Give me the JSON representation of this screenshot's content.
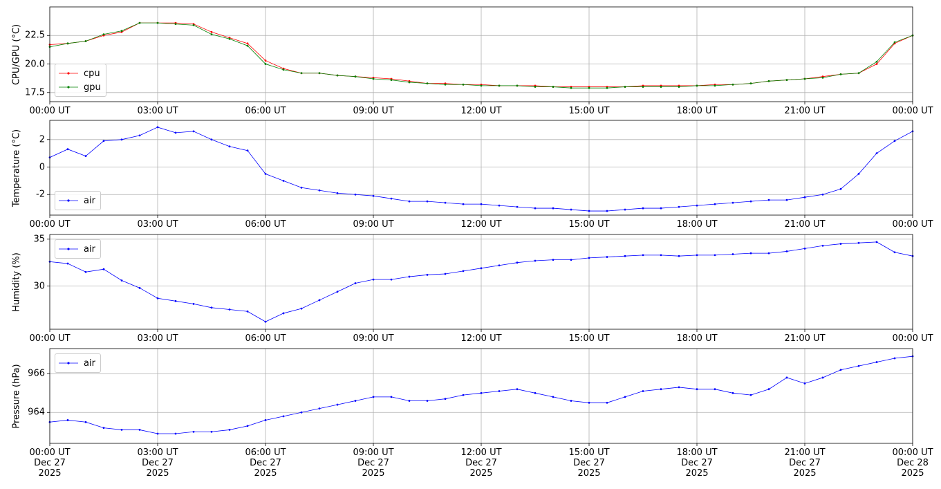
{
  "chart_data": [
    {
      "type": "line",
      "ylabel": "CPU/GPU (°C)",
      "grid": true,
      "legend": "lower left",
      "x": [
        "2025-12-27 00:00",
        "2025-12-27 00:30",
        "2025-12-27 01:00",
        "2025-12-27 01:30",
        "2025-12-27 02:00",
        "2025-12-27 02:30",
        "2025-12-27 03:00",
        "2025-12-27 03:30",
        "2025-12-27 04:00",
        "2025-12-27 04:30",
        "2025-12-27 05:00",
        "2025-12-27 05:30",
        "2025-12-27 06:00",
        "2025-12-27 06:30",
        "2025-12-27 07:00",
        "2025-12-27 07:30",
        "2025-12-27 08:00",
        "2025-12-27 08:30",
        "2025-12-27 09:00",
        "2025-12-27 09:30",
        "2025-12-27 10:00",
        "2025-12-27 10:30",
        "2025-12-27 11:00",
        "2025-12-27 11:30",
        "2025-12-27 12:00",
        "2025-12-27 12:30",
        "2025-12-27 13:00",
        "2025-12-27 13:30",
        "2025-12-27 14:00",
        "2025-12-27 14:30",
        "2025-12-27 15:00",
        "2025-12-27 15:30",
        "2025-12-27 16:00",
        "2025-12-27 16:30",
        "2025-12-27 17:00",
        "2025-12-27 17:30",
        "2025-12-27 18:00",
        "2025-12-27 18:30",
        "2025-12-27 19:00",
        "2025-12-27 19:30",
        "2025-12-27 20:00",
        "2025-12-27 20:30",
        "2025-12-27 21:00",
        "2025-12-27 21:30",
        "2025-12-27 22:00",
        "2025-12-27 22:30",
        "2025-12-27 23:00",
        "2025-12-27 23:30",
        "2025-12-28 00:00"
      ],
      "series": [
        {
          "name": "cpu",
          "color": "red",
          "values": [
            21.7,
            21.8,
            22.0,
            22.5,
            22.8,
            23.6,
            23.6,
            23.6,
            23.5,
            22.8,
            22.3,
            21.8,
            20.3,
            19.6,
            19.2,
            19.2,
            19.0,
            18.9,
            18.8,
            18.7,
            18.5,
            18.3,
            18.3,
            18.2,
            18.2,
            18.1,
            18.1,
            18.1,
            18.0,
            18.0,
            18.0,
            18.0,
            18.0,
            18.1,
            18.1,
            18.1,
            18.1,
            18.2,
            18.2,
            18.3,
            18.5,
            18.6,
            18.7,
            18.9,
            19.1,
            19.2,
            20.0,
            21.8,
            22.5
          ]
        },
        {
          "name": "gpu",
          "color": "green",
          "values": [
            21.5,
            21.8,
            22.0,
            22.6,
            22.9,
            23.6,
            23.6,
            23.5,
            23.4,
            22.6,
            22.2,
            21.6,
            20.0,
            19.5,
            19.2,
            19.2,
            19.0,
            18.9,
            18.7,
            18.6,
            18.4,
            18.3,
            18.2,
            18.2,
            18.1,
            18.1,
            18.1,
            18.0,
            18.0,
            17.9,
            17.9,
            17.9,
            18.0,
            18.0,
            18.0,
            18.0,
            18.1,
            18.1,
            18.2,
            18.3,
            18.5,
            18.6,
            18.7,
            18.8,
            19.1,
            19.2,
            20.2,
            21.9,
            22.5
          ]
        }
      ],
      "xlim": [
        "2025-12-27 00:00",
        "2025-12-28 00:00"
      ],
      "xticks": [
        {
          "value": "2025-12-27 00:00",
          "label": "00:00 UT"
        },
        {
          "value": "2025-12-27 03:00",
          "label": "03:00 UT"
        },
        {
          "value": "2025-12-27 06:00",
          "label": "06:00 UT"
        },
        {
          "value": "2025-12-27 09:00",
          "label": "09:00 UT"
        },
        {
          "value": "2025-12-27 12:00",
          "label": "12:00 UT"
        },
        {
          "value": "2025-12-27 15:00",
          "label": "15:00 UT"
        },
        {
          "value": "2025-12-27 18:00",
          "label": "18:00 UT"
        },
        {
          "value": "2025-12-27 21:00",
          "label": "21:00 UT"
        },
        {
          "value": "2025-12-28 00:00",
          "label": "00:00 UT"
        }
      ],
      "ylim": [
        16.7,
        25.0
      ],
      "yticks": [
        17.5,
        {
          "value": 20,
          "label": "20.0"
        },
        22.5
      ]
    },
    {
      "type": "line",
      "ylabel": "Temperature (°C)",
      "grid": true,
      "legend": "lower left",
      "x": [
        "2025-12-27 00:00",
        "2025-12-27 00:30",
        "2025-12-27 01:00",
        "2025-12-27 01:30",
        "2025-12-27 02:00",
        "2025-12-27 02:30",
        "2025-12-27 03:00",
        "2025-12-27 03:30",
        "2025-12-27 04:00",
        "2025-12-27 04:30",
        "2025-12-27 05:00",
        "2025-12-27 05:30",
        "2025-12-27 06:00",
        "2025-12-27 06:30",
        "2025-12-27 07:00",
        "2025-12-27 07:30",
        "2025-12-27 08:00",
        "2025-12-27 08:30",
        "2025-12-27 09:00",
        "2025-12-27 09:30",
        "2025-12-27 10:00",
        "2025-12-27 10:30",
        "2025-12-27 11:00",
        "2025-12-27 11:30",
        "2025-12-27 12:00",
        "2025-12-27 12:30",
        "2025-12-27 13:00",
        "2025-12-27 13:30",
        "2025-12-27 14:00",
        "2025-12-27 14:30",
        "2025-12-27 15:00",
        "2025-12-27 15:30",
        "2025-12-27 16:00",
        "2025-12-27 16:30",
        "2025-12-27 17:00",
        "2025-12-27 17:30",
        "2025-12-27 18:00",
        "2025-12-27 18:30",
        "2025-12-27 19:00",
        "2025-12-27 19:30",
        "2025-12-27 20:00",
        "2025-12-27 20:30",
        "2025-12-27 21:00",
        "2025-12-27 21:30",
        "2025-12-27 22:00",
        "2025-12-27 22:30",
        "2025-12-27 23:00",
        "2025-12-27 23:30",
        "2025-12-28 00:00"
      ],
      "series": [
        {
          "name": "air",
          "color": "blue",
          "values": [
            0.7,
            1.3,
            0.8,
            1.9,
            2.0,
            2.3,
            2.9,
            2.5,
            2.6,
            2.0,
            1.5,
            1.2,
            -0.5,
            -1.0,
            -1.5,
            -1.7,
            -1.9,
            -2.0,
            -2.1,
            -2.3,
            -2.5,
            -2.5,
            -2.6,
            -2.7,
            -2.7,
            -2.8,
            -2.9,
            -3.0,
            -3.0,
            -3.1,
            -3.2,
            -3.2,
            -3.1,
            -3.0,
            -3.0,
            -2.9,
            -2.8,
            -2.7,
            -2.6,
            -2.5,
            -2.4,
            -2.4,
            -2.2,
            -2.0,
            -1.6,
            -0.5,
            1.0,
            1.9,
            2.6
          ]
        }
      ],
      "xlim": [
        "2025-12-27 00:00",
        "2025-12-28 00:00"
      ],
      "xticks": [
        {
          "value": "2025-12-27 00:00",
          "label": "00:00 UT"
        },
        {
          "value": "2025-12-27 03:00",
          "label": "03:00 UT"
        },
        {
          "value": "2025-12-27 06:00",
          "label": "06:00 UT"
        },
        {
          "value": "2025-12-27 09:00",
          "label": "09:00 UT"
        },
        {
          "value": "2025-12-27 12:00",
          "label": "12:00 UT"
        },
        {
          "value": "2025-12-27 15:00",
          "label": "15:00 UT"
        },
        {
          "value": "2025-12-27 18:00",
          "label": "18:00 UT"
        },
        {
          "value": "2025-12-27 21:00",
          "label": "21:00 UT"
        },
        {
          "value": "2025-12-28 00:00",
          "label": "00:00 UT"
        }
      ],
      "ylim": [
        -3.5,
        3.4
      ],
      "yticks": [
        -2,
        0,
        2
      ]
    },
    {
      "type": "line",
      "ylabel": "Humidity (%)",
      "grid": true,
      "legend": "upper left",
      "x": [
        "2025-12-27 00:00",
        "2025-12-27 00:30",
        "2025-12-27 01:00",
        "2025-12-27 01:30",
        "2025-12-27 02:00",
        "2025-12-27 02:30",
        "2025-12-27 03:00",
        "2025-12-27 03:30",
        "2025-12-27 04:00",
        "2025-12-27 04:30",
        "2025-12-27 05:00",
        "2025-12-27 05:30",
        "2025-12-27 06:00",
        "2025-12-27 06:30",
        "2025-12-27 07:00",
        "2025-12-27 07:30",
        "2025-12-27 08:00",
        "2025-12-27 08:30",
        "2025-12-27 09:00",
        "2025-12-27 09:30",
        "2025-12-27 10:00",
        "2025-12-27 10:30",
        "2025-12-27 11:00",
        "2025-12-27 11:30",
        "2025-12-27 12:00",
        "2025-12-27 12:30",
        "2025-12-27 13:00",
        "2025-12-27 13:30",
        "2025-12-27 14:00",
        "2025-12-27 14:30",
        "2025-12-27 15:00",
        "2025-12-27 15:30",
        "2025-12-27 16:00",
        "2025-12-27 16:30",
        "2025-12-27 17:00",
        "2025-12-27 17:30",
        "2025-12-27 18:00",
        "2025-12-27 18:30",
        "2025-12-27 19:00",
        "2025-12-27 19:30",
        "2025-12-27 20:00",
        "2025-12-27 20:30",
        "2025-12-27 21:00",
        "2025-12-27 21:30",
        "2025-12-27 22:00",
        "2025-12-27 22:30",
        "2025-12-27 23:00",
        "2025-12-27 23:30",
        "2025-12-28 00:00"
      ],
      "series": [
        {
          "name": "air",
          "color": "blue",
          "values": [
            32.6,
            32.4,
            31.5,
            31.8,
            30.6,
            29.8,
            28.7,
            28.4,
            28.1,
            27.7,
            27.5,
            27.3,
            26.2,
            27.1,
            27.6,
            28.5,
            29.4,
            30.3,
            30.7,
            30.7,
            31.0,
            31.2,
            31.3,
            31.6,
            31.9,
            32.2,
            32.5,
            32.7,
            32.8,
            32.8,
            33.0,
            33.1,
            33.2,
            33.3,
            33.3,
            33.2,
            33.3,
            33.3,
            33.4,
            33.5,
            33.5,
            33.7,
            34.0,
            34.3,
            34.5,
            34.6,
            34.7,
            33.6,
            33.2
          ]
        }
      ],
      "xlim": [
        "2025-12-27 00:00",
        "2025-12-28 00:00"
      ],
      "xticks": [
        {
          "value": "2025-12-27 00:00",
          "label": "00:00 UT"
        },
        {
          "value": "2025-12-27 03:00",
          "label": "03:00 UT"
        },
        {
          "value": "2025-12-27 06:00",
          "label": "06:00 UT"
        },
        {
          "value": "2025-12-27 09:00",
          "label": "09:00 UT"
        },
        {
          "value": "2025-12-27 12:00",
          "label": "12:00 UT"
        },
        {
          "value": "2025-12-27 15:00",
          "label": "15:00 UT"
        },
        {
          "value": "2025-12-27 18:00",
          "label": "18:00 UT"
        },
        {
          "value": "2025-12-27 21:00",
          "label": "21:00 UT"
        },
        {
          "value": "2025-12-28 00:00",
          "label": "00:00 UT"
        }
      ],
      "ylim": [
        25.4,
        35.5
      ],
      "yticks": [
        30,
        35
      ]
    },
    {
      "type": "line",
      "ylabel": "Pressure (hPa)",
      "grid": true,
      "legend": "upper left",
      "x": [
        "2025-12-27 00:00",
        "2025-12-27 00:30",
        "2025-12-27 01:00",
        "2025-12-27 01:30",
        "2025-12-27 02:00",
        "2025-12-27 02:30",
        "2025-12-27 03:00",
        "2025-12-27 03:30",
        "2025-12-27 04:00",
        "2025-12-27 04:30",
        "2025-12-27 05:00",
        "2025-12-27 05:30",
        "2025-12-27 06:00",
        "2025-12-27 06:30",
        "2025-12-27 07:00",
        "2025-12-27 07:30",
        "2025-12-27 08:00",
        "2025-12-27 08:30",
        "2025-12-27 09:00",
        "2025-12-27 09:30",
        "2025-12-27 10:00",
        "2025-12-27 10:30",
        "2025-12-27 11:00",
        "2025-12-27 11:30",
        "2025-12-27 12:00",
        "2025-12-27 12:30",
        "2025-12-27 13:00",
        "2025-12-27 13:30",
        "2025-12-27 14:00",
        "2025-12-27 14:30",
        "2025-12-27 15:00",
        "2025-12-27 15:30",
        "2025-12-27 16:00",
        "2025-12-27 16:30",
        "2025-12-27 17:00",
        "2025-12-27 17:30",
        "2025-12-27 18:00",
        "2025-12-27 18:30",
        "2025-12-27 19:00",
        "2025-12-27 19:30",
        "2025-12-27 20:00",
        "2025-12-27 20:30",
        "2025-12-27 21:00",
        "2025-12-27 21:30",
        "2025-12-27 22:00",
        "2025-12-27 22:30",
        "2025-12-27 23:00",
        "2025-12-27 23:30",
        "2025-12-28 00:00"
      ],
      "series": [
        {
          "name": "air",
          "color": "blue",
          "values": [
            963.5,
            963.6,
            963.5,
            963.2,
            963.1,
            963.1,
            962.9,
            962.9,
            963.0,
            963.0,
            963.1,
            963.3,
            963.6,
            963.8,
            964.0,
            964.2,
            964.4,
            964.6,
            964.8,
            964.8,
            964.6,
            964.6,
            964.7,
            964.9,
            965.0,
            965.1,
            965.2,
            965.0,
            964.8,
            964.6,
            964.5,
            964.5,
            964.8,
            965.1,
            965.2,
            965.3,
            965.2,
            965.2,
            965.0,
            964.9,
            965.2,
            965.8,
            965.5,
            965.8,
            966.2,
            966.4,
            966.6,
            966.8,
            966.9
          ]
        }
      ],
      "xlim": [
        "2025-12-27 00:00",
        "2025-12-28 00:00"
      ],
      "xticks": [
        {
          "value": "2025-12-27 00:00",
          "label": "00:00 UT\nDec 27\n2025"
        },
        {
          "value": "2025-12-27 03:00",
          "label": "03:00 UT\nDec 27\n2025"
        },
        {
          "value": "2025-12-27 06:00",
          "label": "06:00 UT\nDec 27\n2025"
        },
        {
          "value": "2025-12-27 09:00",
          "label": "09:00 UT\nDec 27\n2025"
        },
        {
          "value": "2025-12-27 12:00",
          "label": "12:00 UT\nDec 27\n2025"
        },
        {
          "value": "2025-12-27 15:00",
          "label": "15:00 UT\nDec 27\n2025"
        },
        {
          "value": "2025-12-27 18:00",
          "label": "18:00 UT\nDec 27\n2025"
        },
        {
          "value": "2025-12-27 21:00",
          "label": "21:00 UT\nDec 27\n2025"
        },
        {
          "value": "2025-12-28 00:00",
          "label": "00:00 UT\nDec 28\n2025"
        }
      ],
      "ylim": [
        962.4,
        967.3
      ],
      "yticks": [
        964,
        966
      ]
    }
  ]
}
